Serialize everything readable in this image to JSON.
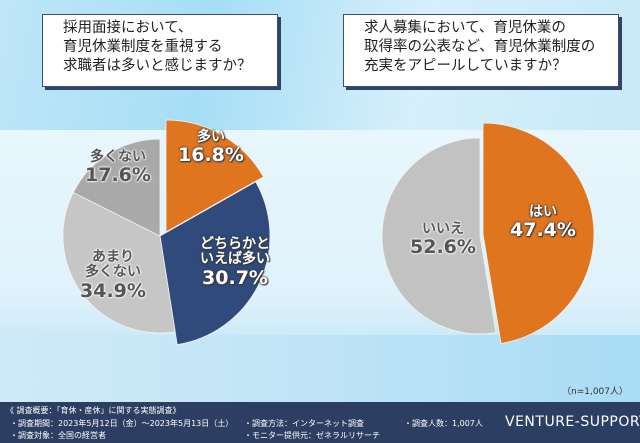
{
  "chart_data": [
    {
      "type": "pie",
      "title": "採用面接において、育児休業制度を重視する求職者は多いと感じますか？",
      "title_lines": [
        "採用面接において、",
        "育児休業制度を重視する",
        "求職者は多いと感じますか？"
      ],
      "slices": [
        {
          "label": "多い",
          "label_lines": [
            "多い"
          ],
          "value": 16.8,
          "display": "16.8%",
          "color": "#e07520"
        },
        {
          "label": "どちらかといえば多い",
          "label_lines": [
            "どちらかと",
            "いえば多い"
          ],
          "value": 30.7,
          "display": "30.7%",
          "color": "#2f4a7b"
        },
        {
          "label": "あまり多くない",
          "label_lines": [
            "あまり",
            "多くない"
          ],
          "value": 34.9,
          "display": "34.9%",
          "color": "#c6c6c6"
        },
        {
          "label": "多くない",
          "label_lines": [
            "多くない"
          ],
          "value": 17.6,
          "display": "17.6%",
          "color": "#a9a9a9"
        }
      ]
    },
    {
      "type": "pie",
      "title": "求人募集において、育児休業の取得率の公表など、育児休業制度の充実をアピールしていますか？",
      "title_lines": [
        "求人募集において、育児休業の",
        "取得率の公表など、育児休業制度の",
        "充実をアピールしていますか？"
      ],
      "slices": [
        {
          "label": "はい",
          "label_lines": [
            "はい"
          ],
          "value": 47.4,
          "display": "47.4%",
          "color": "#e07520"
        },
        {
          "label": "いいえ",
          "label_lines": [
            "いいえ"
          ],
          "value": 52.6,
          "display": "52.6%",
          "color": "#c2c2c2"
        }
      ]
    }
  ],
  "sample": "（n=1,007人）",
  "footer": {
    "heading": "《 調査概要：「育休・産休」に関する実態調査》",
    "period": "・調査期間：2023年5月12日（金）〜2023年5月13日（土）",
    "target": "・調査対象：全国の経営者",
    "method": "・調査方法：インターネット調査",
    "provider": "・モニター提供元：ゼネラルリサーチ",
    "count": "・調査人数：1,007人",
    "brand": "VENTURE-SUPPORT"
  }
}
